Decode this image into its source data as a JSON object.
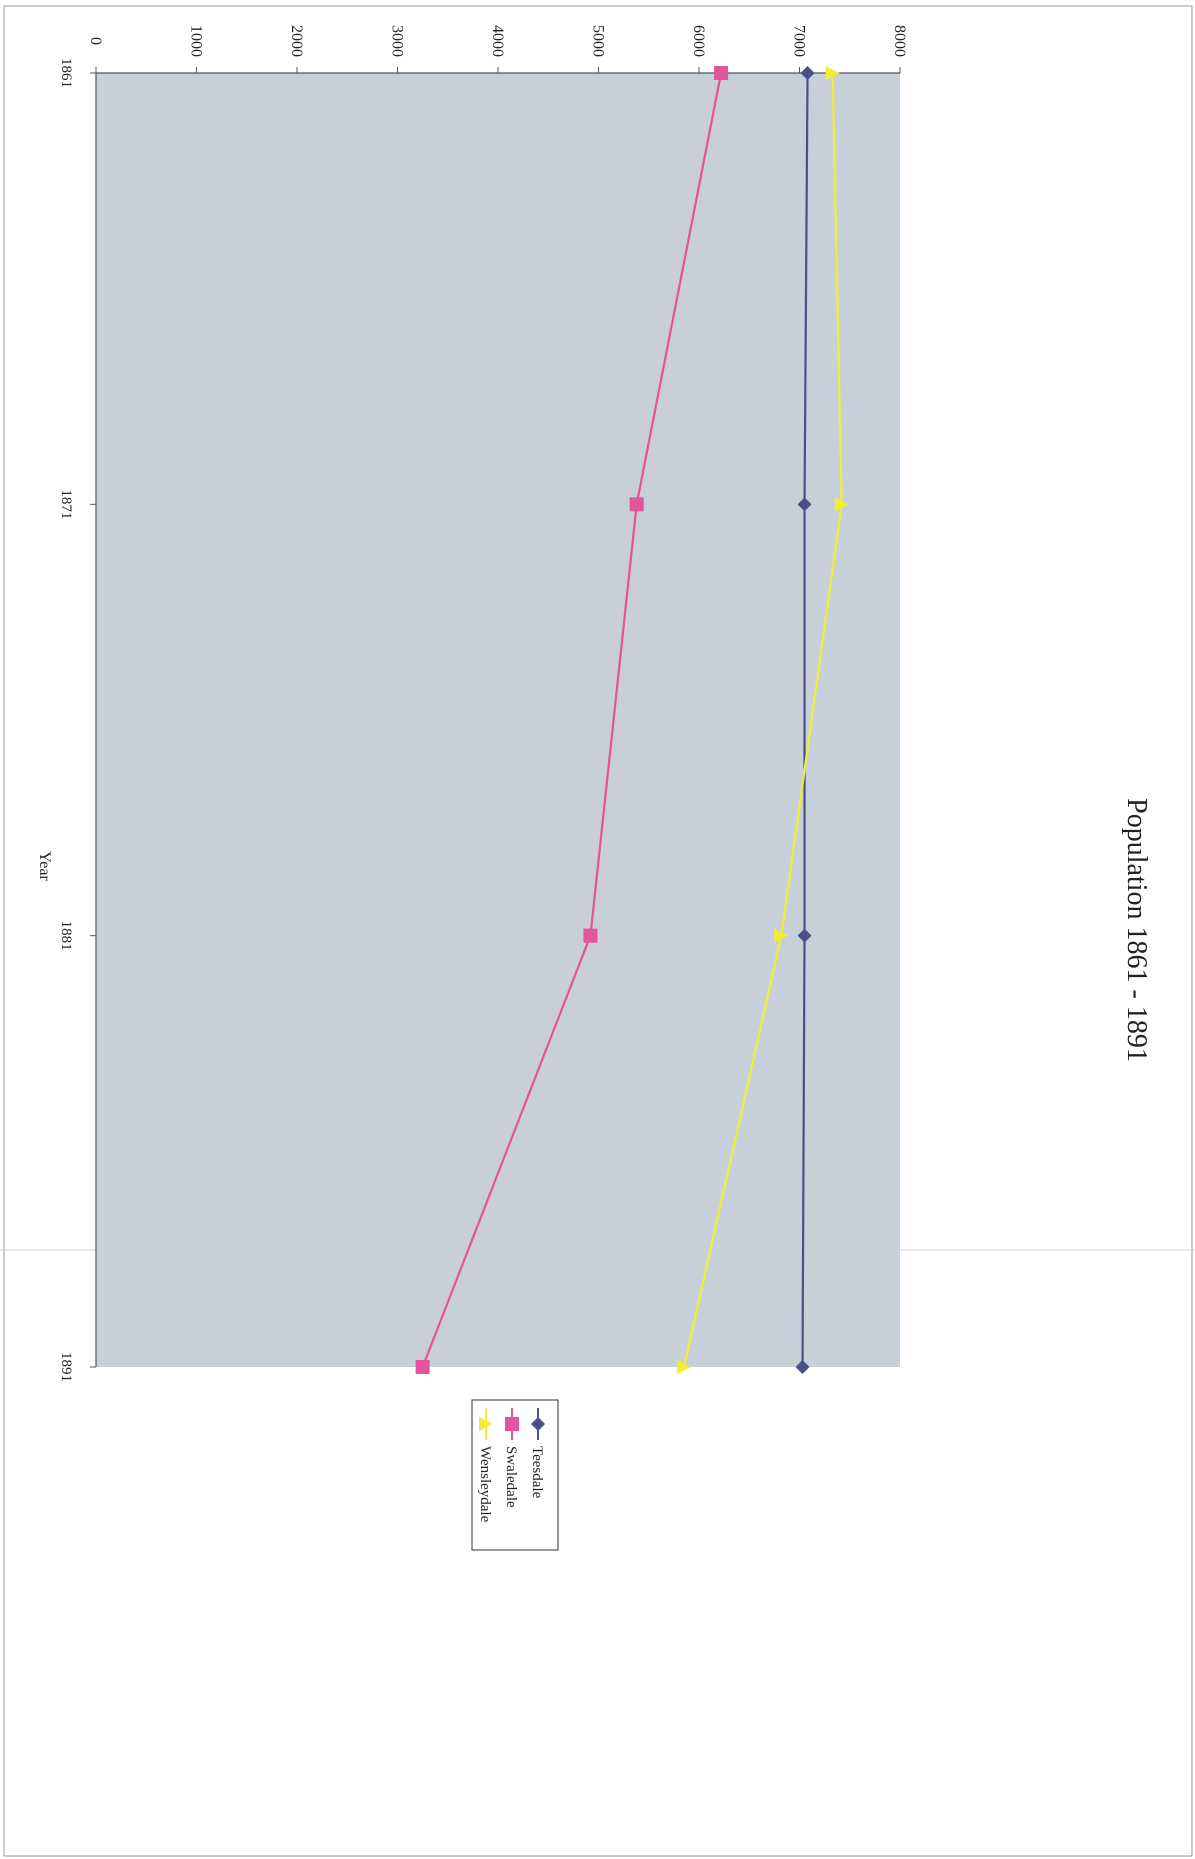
{
  "chart_data": {
    "type": "line",
    "title": "Population 1861 - 1891",
    "xlabel": "Year",
    "ylabel": "",
    "categories": [
      "1861",
      "1871",
      "1881",
      "1891"
    ],
    "ylim": [
      0,
      8000
    ],
    "yticks": [
      "0",
      "1000",
      "2000",
      "3000",
      "4000",
      "5000",
      "6000",
      "7000",
      "8000"
    ],
    "grid": false,
    "legend_position": "right",
    "series": [
      {
        "name": "Teesdale",
        "values": [
          7080,
          7050,
          7050,
          7030
        ],
        "color": "#4a4f86",
        "marker": "diamond"
      },
      {
        "name": "Swaledale",
        "values": [
          6220,
          5380,
          4920,
          3250
        ],
        "color": "#e2559c",
        "marker": "square"
      },
      {
        "name": "Wensleydale",
        "values": [
          7330,
          7420,
          6820,
          5850
        ],
        "color": "#eeee33",
        "marker": "triangle"
      }
    ],
    "plot_background": "#c9cfd9",
    "orientation": "rotated 90° clockwise on page"
  }
}
